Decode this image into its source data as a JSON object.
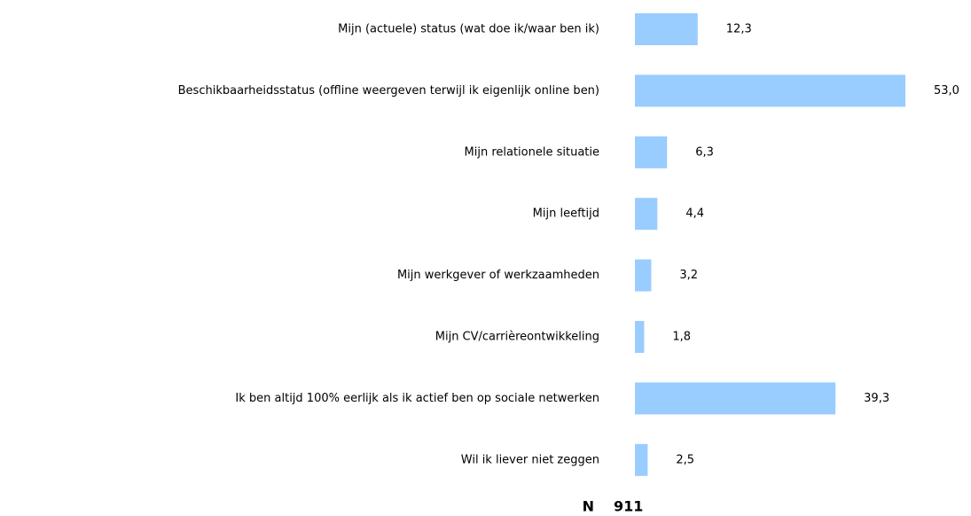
{
  "chart_data": {
    "type": "bar",
    "orientation": "horizontal",
    "categories": [
      "Mijn (actuele) status (wat doe ik/waar ben ik)",
      "Beschikbaarheidsstatus (offline weergeven terwijl ik eigenlijk online ben)",
      "Mijn relationele situatie",
      "Mijn leeftijd",
      "Mijn werkgever of werkzaamheden",
      "Mijn CV/carrièreontwikkeling",
      "Ik ben altijd 100% eerlijk als ik actief ben op sociale netwerken",
      "Wil ik liever niet zeggen"
    ],
    "values": [
      12.3,
      53.0,
      6.3,
      4.4,
      3.2,
      1.8,
      39.3,
      2.5
    ],
    "value_labels": [
      "12,3",
      "53,0",
      "6,3",
      "4,4",
      "3,2",
      "1,8",
      "39,3",
      "2,5"
    ],
    "color": "#99ccff",
    "n_label": "N",
    "n_value": 911
  }
}
